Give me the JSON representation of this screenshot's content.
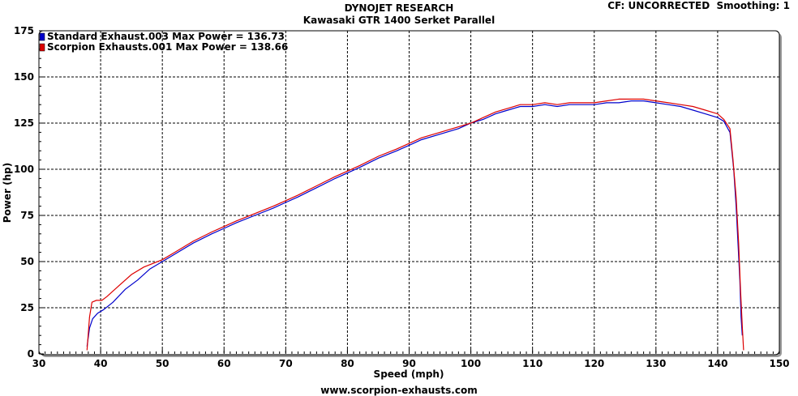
{
  "header": {
    "title": "DYNOJET RESEARCH",
    "subtitle": "Kawasaki GTR 1400 Serket Parallel",
    "cf_info": "CF: UNCORRECTED  Smoothing: 1"
  },
  "footer": {
    "text": "www.scorpion-exhausts.com"
  },
  "colors": {
    "background": "#ffffff",
    "grid": "#000000"
  },
  "chart_data": {
    "type": "line",
    "title": "DYNOJET RESEARCH",
    "subtitle": "Kawasaki GTR 1400 Serket Parallel",
    "xlabel": "Speed (mph)",
    "ylabel": "Power (hp)",
    "xlim": [
      30,
      150
    ],
    "ylim": [
      0,
      175
    ],
    "x_ticks": [
      "30",
      "40",
      "50",
      "60",
      "70",
      "80",
      "90",
      "100",
      "110",
      "120",
      "130",
      "140",
      "150"
    ],
    "y_ticks": [
      "0",
      "25",
      "50",
      "75",
      "100",
      "125",
      "150",
      "175"
    ],
    "grid": true,
    "legend_position": "top-left",
    "series": [
      {
        "name": "Standard Exhaust.003 Max Power = 136.73",
        "color": "#0000cc",
        "points": [
          [
            37.8,
            4
          ],
          [
            38.2,
            14
          ],
          [
            38.7,
            19
          ],
          [
            39.5,
            22
          ],
          [
            40.5,
            24
          ],
          [
            42,
            28
          ],
          [
            44,
            35
          ],
          [
            46,
            40
          ],
          [
            48,
            46
          ],
          [
            50,
            50
          ],
          [
            52,
            54
          ],
          [
            55,
            60
          ],
          [
            58,
            65
          ],
          [
            60,
            68
          ],
          [
            62,
            71
          ],
          [
            65,
            75
          ],
          [
            68,
            79
          ],
          [
            70,
            82
          ],
          [
            72,
            85
          ],
          [
            75,
            90
          ],
          [
            78,
            95
          ],
          [
            80,
            98
          ],
          [
            82,
            101
          ],
          [
            85,
            106
          ],
          [
            88,
            110
          ],
          [
            90,
            113
          ],
          [
            92,
            116
          ],
          [
            95,
            119
          ],
          [
            98,
            122
          ],
          [
            100,
            125
          ],
          [
            102,
            127
          ],
          [
            104,
            130
          ],
          [
            106,
            132
          ],
          [
            108,
            134
          ],
          [
            110,
            134
          ],
          [
            112,
            135
          ],
          [
            114,
            134
          ],
          [
            116,
            135
          ],
          [
            118,
            135
          ],
          [
            120,
            135
          ],
          [
            122,
            136
          ],
          [
            124,
            136
          ],
          [
            126,
            137
          ],
          [
            128,
            137
          ],
          [
            130,
            136
          ],
          [
            132,
            135
          ],
          [
            134,
            134
          ],
          [
            136,
            132
          ],
          [
            138,
            130
          ],
          [
            140,
            128
          ],
          [
            141,
            126
          ],
          [
            142,
            120
          ],
          [
            142.6,
            100
          ],
          [
            143,
            80
          ],
          [
            143.3,
            60
          ],
          [
            143.6,
            40
          ],
          [
            143.8,
            20
          ],
          [
            144,
            10
          ]
        ]
      },
      {
        "name": "Scorpion Exhausts.001 Max Power = 138.66",
        "color": "#dd0000",
        "points": [
          [
            37.8,
            2
          ],
          [
            38.2,
            20
          ],
          [
            38.6,
            28
          ],
          [
            39.3,
            29
          ],
          [
            40.2,
            29
          ],
          [
            41,
            31
          ],
          [
            43,
            37
          ],
          [
            45,
            43
          ],
          [
            47,
            47
          ],
          [
            50,
            51
          ],
          [
            52,
            55
          ],
          [
            55,
            61
          ],
          [
            58,
            66
          ],
          [
            60,
            69
          ],
          [
            62,
            72
          ],
          [
            65,
            76
          ],
          [
            68,
            80
          ],
          [
            70,
            83
          ],
          [
            72,
            86
          ],
          [
            75,
            91
          ],
          [
            78,
            96
          ],
          [
            80,
            99
          ],
          [
            82,
            102
          ],
          [
            85,
            107
          ],
          [
            88,
            111
          ],
          [
            90,
            114
          ],
          [
            92,
            117
          ],
          [
            95,
            120
          ],
          [
            98,
            123
          ],
          [
            100,
            125
          ],
          [
            102,
            128
          ],
          [
            104,
            131
          ],
          [
            106,
            133
          ],
          [
            108,
            135
          ],
          [
            110,
            135
          ],
          [
            112,
            136
          ],
          [
            114,
            135
          ],
          [
            116,
            136
          ],
          [
            118,
            136
          ],
          [
            120,
            136
          ],
          [
            122,
            137
          ],
          [
            124,
            138
          ],
          [
            126,
            138
          ],
          [
            128,
            138
          ],
          [
            130,
            137
          ],
          [
            132,
            136
          ],
          [
            134,
            135
          ],
          [
            136,
            134
          ],
          [
            138,
            132
          ],
          [
            140,
            130
          ],
          [
            141,
            127
          ],
          [
            142,
            122
          ],
          [
            142.5,
            105
          ],
          [
            143,
            85
          ],
          [
            143.4,
            60
          ],
          [
            143.7,
            35
          ],
          [
            144,
            15
          ],
          [
            144.2,
            2
          ]
        ]
      }
    ]
  }
}
